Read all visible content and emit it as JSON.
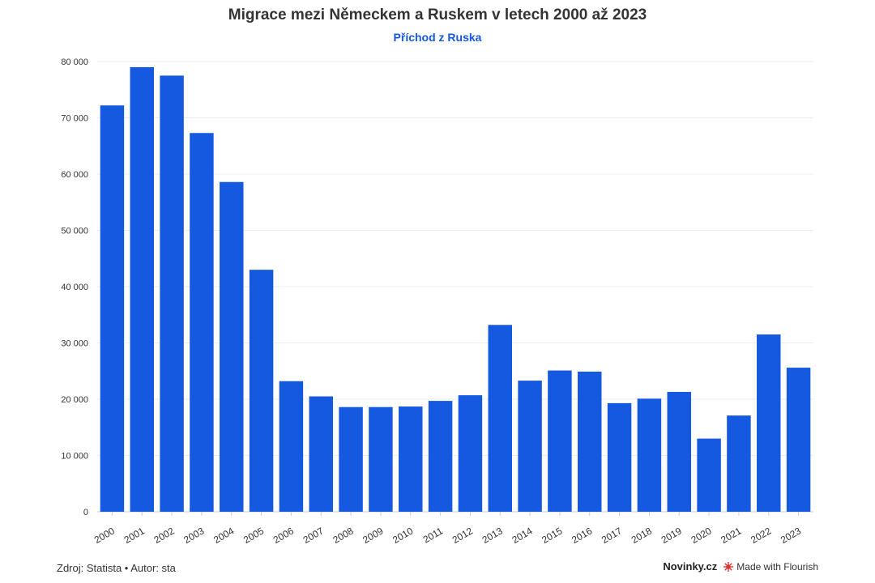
{
  "colors": {
    "bar": "#1559e0",
    "grid": "#eeeeee",
    "axis": "#cccccc",
    "subtitle": "#1559e0"
  },
  "footer": {
    "source": "Zdroj: Statista • Autor: sta",
    "brand": "Novinky.cz",
    "flourish": "Made with Flourish",
    "flourish_icon": "flourish-star-icon"
  },
  "chart_data": {
    "type": "bar",
    "title": "Migrace mezi Německem a Ruskem v letech 2000 až 2023",
    "subtitle": "Příchod z Ruska",
    "xlabel": "",
    "ylabel": "",
    "ylim": [
      0,
      80000
    ],
    "yticks": [
      0,
      10000,
      20000,
      30000,
      40000,
      50000,
      60000,
      70000,
      80000
    ],
    "ytick_labels": [
      "0",
      "10 000",
      "20 000",
      "30 000",
      "40 000",
      "50 000",
      "60 000",
      "70 000",
      "80 000"
    ],
    "grid": true,
    "categories": [
      "2000",
      "2001",
      "2002",
      "2003",
      "2004",
      "2005",
      "2006",
      "2007",
      "2008",
      "2009",
      "2010",
      "2011",
      "2012",
      "2013",
      "2014",
      "2015",
      "2016",
      "2017",
      "2018",
      "2019",
      "2020",
      "2021",
      "2022",
      "2023"
    ],
    "values": [
      72200,
      79000,
      77500,
      67300,
      58600,
      43000,
      23200,
      20500,
      18600,
      18600,
      18700,
      19700,
      20700,
      33200,
      23300,
      25100,
      24900,
      19300,
      20100,
      21300,
      13000,
      17100,
      31500,
      25600
    ]
  }
}
